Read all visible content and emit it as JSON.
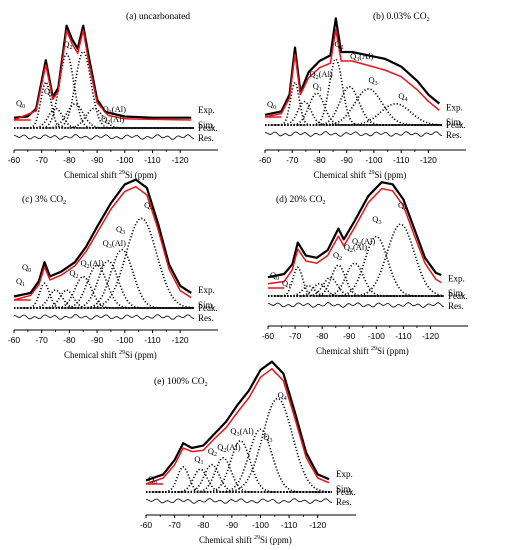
{
  "figure": {
    "legend_labels": [
      "Exp.",
      "Sim.",
      "Peak.",
      "Res."
    ],
    "colors": {
      "exp": "#000000",
      "sim": "#e8141b",
      "peak": "#000000",
      "res": "#000000"
    }
  },
  "chart_data": [
    {
      "type": "line",
      "title": "(a) uncarbonated",
      "xlabel": "Chemical shift 29Si (ppm)",
      "xlim": [
        -60,
        -125
      ],
      "x_ticks": [
        "-60",
        "-70",
        "-80",
        "-90",
        "-100",
        "-110",
        "-120"
      ],
      "peak_labels": [
        "Q0",
        "Q1",
        "Q2",
        "Q3(Al)",
        "Q2(Al)"
      ],
      "series": [
        {
          "name": "Exp.",
          "points": [
            [
              -60,
              0.02
            ],
            [
              -65,
              0.03
            ],
            [
              -68,
              0.1
            ],
            [
              -71.5,
              0.52
            ],
            [
              -74,
              0.2
            ],
            [
              -76,
              0.28
            ],
            [
              -79,
              0.82
            ],
            [
              -81,
              0.7
            ],
            [
              -83,
              0.62
            ],
            [
              -85,
              0.82
            ],
            [
              -87,
              0.55
            ],
            [
              -90,
              0.18
            ],
            [
              -93,
              0.07
            ],
            [
              -100,
              0.03
            ],
            [
              -110,
              0.02
            ],
            [
              -120,
              0.02
            ],
            [
              -124,
              0.02
            ]
          ]
        },
        {
          "name": "Sim.",
          "points": [
            [
              -60,
              0.0
            ],
            [
              -68,
              0.08
            ],
            [
              -71.5,
              0.48
            ],
            [
              -74,
              0.18
            ],
            [
              -76,
              0.25
            ],
            [
              -79,
              0.78
            ],
            [
              -81,
              0.66
            ],
            [
              -83,
              0.58
            ],
            [
              -85,
              0.78
            ],
            [
              -87,
              0.5
            ],
            [
              -90,
              0.15
            ],
            [
              -94,
              0.04
            ],
            [
              -100,
              0.01
            ],
            [
              -124,
              0.0
            ]
          ]
        }
      ],
      "peaks": [
        {
          "name": "Q0",
          "center": -71.5,
          "height": 0.42,
          "width": 1.8
        },
        {
          "name": "Q1",
          "center": -75,
          "height": 0.18,
          "width": 2.5
        },
        {
          "name": "Q1",
          "center": -79,
          "height": 0.68,
          "width": 2.6
        },
        {
          "name": "Q2",
          "center": -85,
          "height": 0.7,
          "width": 2.8
        },
        {
          "name": "Q3(Al)",
          "center": -89,
          "height": 0.18,
          "width": 3.0
        },
        {
          "name": "Q2(Al)",
          "center": -82,
          "height": 0.22,
          "width": 3.0
        }
      ]
    },
    {
      "type": "line",
      "title": "(b) 0.03% CO2",
      "xlabel": "Chemical shift 29Si (ppm)",
      "xlim": [
        -60,
        -125
      ],
      "x_ticks": [
        "-60",
        "-70",
        "-80",
        "-90",
        "-100",
        "-110",
        "-120"
      ],
      "peak_labels": [
        "Q0",
        "Q1",
        "Q2(Al)",
        "Q2",
        "Q3(Al)",
        "Q3",
        "Q4"
      ],
      "series": [
        {
          "name": "Exp.",
          "points": [
            [
              -60,
              0.02
            ],
            [
              -66,
              0.05
            ],
            [
              -69,
              0.2
            ],
            [
              -71,
              0.62
            ],
            [
              -73,
              0.22
            ],
            [
              -76,
              0.4
            ],
            [
              -80,
              0.5
            ],
            [
              -84,
              0.55
            ],
            [
              -86,
              0.88
            ],
            [
              -88,
              0.58
            ],
            [
              -92,
              0.58
            ],
            [
              -98,
              0.55
            ],
            [
              -104,
              0.52
            ],
            [
              -110,
              0.45
            ],
            [
              -116,
              0.32
            ],
            [
              -120,
              0.2
            ],
            [
              -124,
              0.12
            ]
          ]
        },
        {
          "name": "Sim.",
          "points": [
            [
              -60,
              0.0
            ],
            [
              -66,
              0.03
            ],
            [
              -69,
              0.17
            ],
            [
              -71,
              0.56
            ],
            [
              -73,
              0.2
            ],
            [
              -76,
              0.35
            ],
            [
              -80,
              0.44
            ],
            [
              -84,
              0.48
            ],
            [
              -86,
              0.78
            ],
            [
              -88,
              0.5
            ],
            [
              -92,
              0.5
            ],
            [
              -98,
              0.46
            ],
            [
              -104,
              0.42
            ],
            [
              -110,
              0.36
            ],
            [
              -116,
              0.24
            ],
            [
              -120,
              0.14
            ],
            [
              -124,
              0.06
            ]
          ]
        }
      ],
      "peaks": [
        {
          "name": "Q0",
          "center": -71,
          "height": 0.4,
          "width": 1.6
        },
        {
          "name": "Q1",
          "center": -74.5,
          "height": 0.22,
          "width": 2.4
        },
        {
          "name": "Q1",
          "center": -79,
          "height": 0.3,
          "width": 2.8
        },
        {
          "name": "Q2",
          "center": -86,
          "height": 0.62,
          "width": 2.4
        },
        {
          "name": "Q3(Al)",
          "center": -91,
          "height": 0.36,
          "width": 3.5
        },
        {
          "name": "Q3",
          "center": -98,
          "height": 0.34,
          "width": 5.0
        },
        {
          "name": "Q4",
          "center": -108,
          "height": 0.2,
          "width": 5.5
        }
      ]
    },
    {
      "type": "line",
      "title": "(c) 3% CO2",
      "xlabel": "Chemical shift 29Si (ppm)",
      "xlim": [
        -60,
        -125
      ],
      "x_ticks": [
        "-60",
        "-70",
        "-80",
        "-90",
        "-100",
        "-110",
        "-120"
      ],
      "peak_labels": [
        "Q0",
        "Q1",
        "Q2",
        "Q2(Al)",
        "Q3(Al)",
        "Q3",
        "Q4"
      ],
      "series": [
        {
          "name": "Exp.",
          "points": [
            [
              -60,
              0.03
            ],
            [
              -66,
              0.06
            ],
            [
              -69,
              0.16
            ],
            [
              -71,
              0.32
            ],
            [
              -73,
              0.2
            ],
            [
              -77,
              0.24
            ],
            [
              -82,
              0.32
            ],
            [
              -86,
              0.45
            ],
            [
              -90,
              0.62
            ],
            [
              -95,
              0.82
            ],
            [
              -100,
              0.98
            ],
            [
              -104,
              1.02
            ],
            [
              -108,
              0.95
            ],
            [
              -112,
              0.65
            ],
            [
              -116,
              0.3
            ],
            [
              -120,
              0.12
            ],
            [
              -124,
              0.06
            ]
          ]
        },
        {
          "name": "Sim.",
          "points": [
            [
              -60,
              0.0
            ],
            [
              -66,
              0.04
            ],
            [
              -69,
              0.13
            ],
            [
              -71,
              0.28
            ],
            [
              -73,
              0.17
            ],
            [
              -77,
              0.21
            ],
            [
              -82,
              0.29
            ],
            [
              -86,
              0.41
            ],
            [
              -90,
              0.57
            ],
            [
              -95,
              0.77
            ],
            [
              -100,
              0.92
            ],
            [
              -104,
              0.96
            ],
            [
              -108,
              0.89
            ],
            [
              -112,
              0.6
            ],
            [
              -116,
              0.26
            ],
            [
              -120,
              0.08
            ],
            [
              -124,
              0.02
            ]
          ]
        }
      ],
      "peaks": [
        {
          "name": "Q0",
          "center": -71,
          "height": 0.22,
          "width": 1.8
        },
        {
          "name": "Q1",
          "center": -75,
          "height": 0.16,
          "width": 2.4
        },
        {
          "name": "Q1",
          "center": -79,
          "height": 0.16,
          "width": 2.4
        },
        {
          "name": "Q2",
          "center": -85,
          "height": 0.28,
          "width": 3.0
        },
        {
          "name": "Q2(Al)",
          "center": -90,
          "height": 0.38,
          "width": 3.5
        },
        {
          "name": "Q3(Al)",
          "center": -94,
          "height": 0.42,
          "width": 3.6
        },
        {
          "name": "Q3",
          "center": -99,
          "height": 0.52,
          "width": 4.0
        },
        {
          "name": "Q4",
          "center": -106,
          "height": 0.8,
          "width": 5.5
        }
      ]
    },
    {
      "type": "line",
      "title": "(d) 20% CO2",
      "xlabel": "Chemical shift 29Si (ppm)",
      "xlim": [
        -60,
        -125
      ],
      "x_ticks": [
        "-60",
        "-70",
        "-80",
        "-90",
        "-100",
        "-110",
        "-120"
      ],
      "peak_labels": [
        "Q0",
        "Q1",
        "Q2",
        "Q3(Al)",
        "Q2(Al)",
        "Q3",
        "Q4"
      ],
      "series": [
        {
          "name": "Exp.",
          "points": [
            [
              -60,
              0.1
            ],
            [
              -66,
              0.13
            ],
            [
              -69,
              0.22
            ],
            [
              -71,
              0.42
            ],
            [
              -74,
              0.3
            ],
            [
              -78,
              0.28
            ],
            [
              -82,
              0.35
            ],
            [
              -86,
              0.55
            ],
            [
              -88,
              0.45
            ],
            [
              -92,
              0.62
            ],
            [
              -97,
              0.85
            ],
            [
              -102,
              0.98
            ],
            [
              -106,
              0.96
            ],
            [
              -110,
              0.82
            ],
            [
              -114,
              0.55
            ],
            [
              -118,
              0.28
            ],
            [
              -122,
              0.14
            ],
            [
              -124,
              0.12
            ]
          ]
        },
        {
          "name": "Sim.",
          "points": [
            [
              -60,
              0.04
            ],
            [
              -66,
              0.06
            ],
            [
              -69,
              0.17
            ],
            [
              -71,
              0.36
            ],
            [
              -74,
              0.25
            ],
            [
              -78,
              0.23
            ],
            [
              -82,
              0.3
            ],
            [
              -86,
              0.48
            ],
            [
              -88,
              0.39
            ],
            [
              -92,
              0.56
            ],
            [
              -97,
              0.79
            ],
            [
              -102,
              0.92
            ],
            [
              -106,
              0.9
            ],
            [
              -110,
              0.76
            ],
            [
              -114,
              0.49
            ],
            [
              -118,
              0.23
            ],
            [
              -122,
              0.08
            ],
            [
              -124,
              0.05
            ]
          ]
        }
      ],
      "peaks": [
        {
          "name": "Q0",
          "center": -71,
          "height": 0.28,
          "width": 1.8
        },
        {
          "name": "Q1",
          "center": -75,
          "height": 0.1,
          "width": 2.2
        },
        {
          "name": "Q1",
          "center": -79,
          "height": 0.12,
          "width": 2.4
        },
        {
          "name": "Q2",
          "center": -86,
          "height": 0.3,
          "width": 2.6
        },
        {
          "name": "Q3(Al)",
          "center": -92,
          "height": 0.32,
          "width": 3.2
        },
        {
          "name": "Q2(Al)",
          "center": -83,
          "height": 0.18,
          "width": 2.6
        },
        {
          "name": "Q3",
          "center": -100,
          "height": 0.58,
          "width": 4.2
        },
        {
          "name": "Q4",
          "center": -109,
          "height": 0.7,
          "width": 5.0
        }
      ]
    },
    {
      "type": "line",
      "title": "(e) 100% CO2",
      "xlabel": "Chemical shift 29Si (ppm)",
      "xlim": [
        -60,
        -125
      ],
      "x_ticks": [
        "-60",
        "-70",
        "-80",
        "-90",
        "-100",
        "-110",
        "-120"
      ],
      "peak_labels": [
        "Q0",
        "Q1",
        "Q2",
        "Q2(Al)",
        "Q3(Al)",
        "Q3",
        "Q4"
      ],
      "series": [
        {
          "name": "Exp.",
          "points": [
            [
              -60,
              0.03
            ],
            [
              -66,
              0.08
            ],
            [
              -70,
              0.2
            ],
            [
              -73,
              0.34
            ],
            [
              -76,
              0.3
            ],
            [
              -80,
              0.32
            ],
            [
              -84,
              0.42
            ],
            [
              -88,
              0.52
            ],
            [
              -92,
              0.66
            ],
            [
              -96,
              0.78
            ],
            [
              -100,
              0.95
            ],
            [
              -104,
              1.02
            ],
            [
              -108,
              0.92
            ],
            [
              -112,
              0.6
            ],
            [
              -116,
              0.26
            ],
            [
              -120,
              0.08
            ],
            [
              -124,
              0.04
            ]
          ]
        },
        {
          "name": "Sim.",
          "points": [
            [
              -60,
              0.0
            ],
            [
              -66,
              0.05
            ],
            [
              -70,
              0.16
            ],
            [
              -73,
              0.3
            ],
            [
              -76,
              0.27
            ],
            [
              -80,
              0.28
            ],
            [
              -84,
              0.38
            ],
            [
              -88,
              0.47
            ],
            [
              -92,
              0.6
            ],
            [
              -96,
              0.72
            ],
            [
              -100,
              0.89
            ],
            [
              -104,
              0.96
            ],
            [
              -108,
              0.86
            ],
            [
              -112,
              0.55
            ],
            [
              -116,
              0.22
            ],
            [
              -120,
              0.05
            ],
            [
              -124,
              0.01
            ]
          ]
        }
      ],
      "peaks": [
        {
          "name": "Q0",
          "center": -73,
          "height": 0.22,
          "width": 2.0
        },
        {
          "name": "Q1",
          "center": -79,
          "height": 0.2,
          "width": 2.4
        },
        {
          "name": "Q2",
          "center": -83,
          "height": 0.24,
          "width": 2.6
        },
        {
          "name": "Q2(Al)",
          "center": -87,
          "height": 0.3,
          "width": 2.8
        },
        {
          "name": "Q3(Al)",
          "center": -93,
          "height": 0.45,
          "width": 3.4
        },
        {
          "name": "Q3",
          "center": -100,
          "height": 0.55,
          "width": 4.0
        },
        {
          "name": "Q4",
          "center": -106,
          "height": 0.82,
          "width": 5.2
        }
      ]
    }
  ]
}
